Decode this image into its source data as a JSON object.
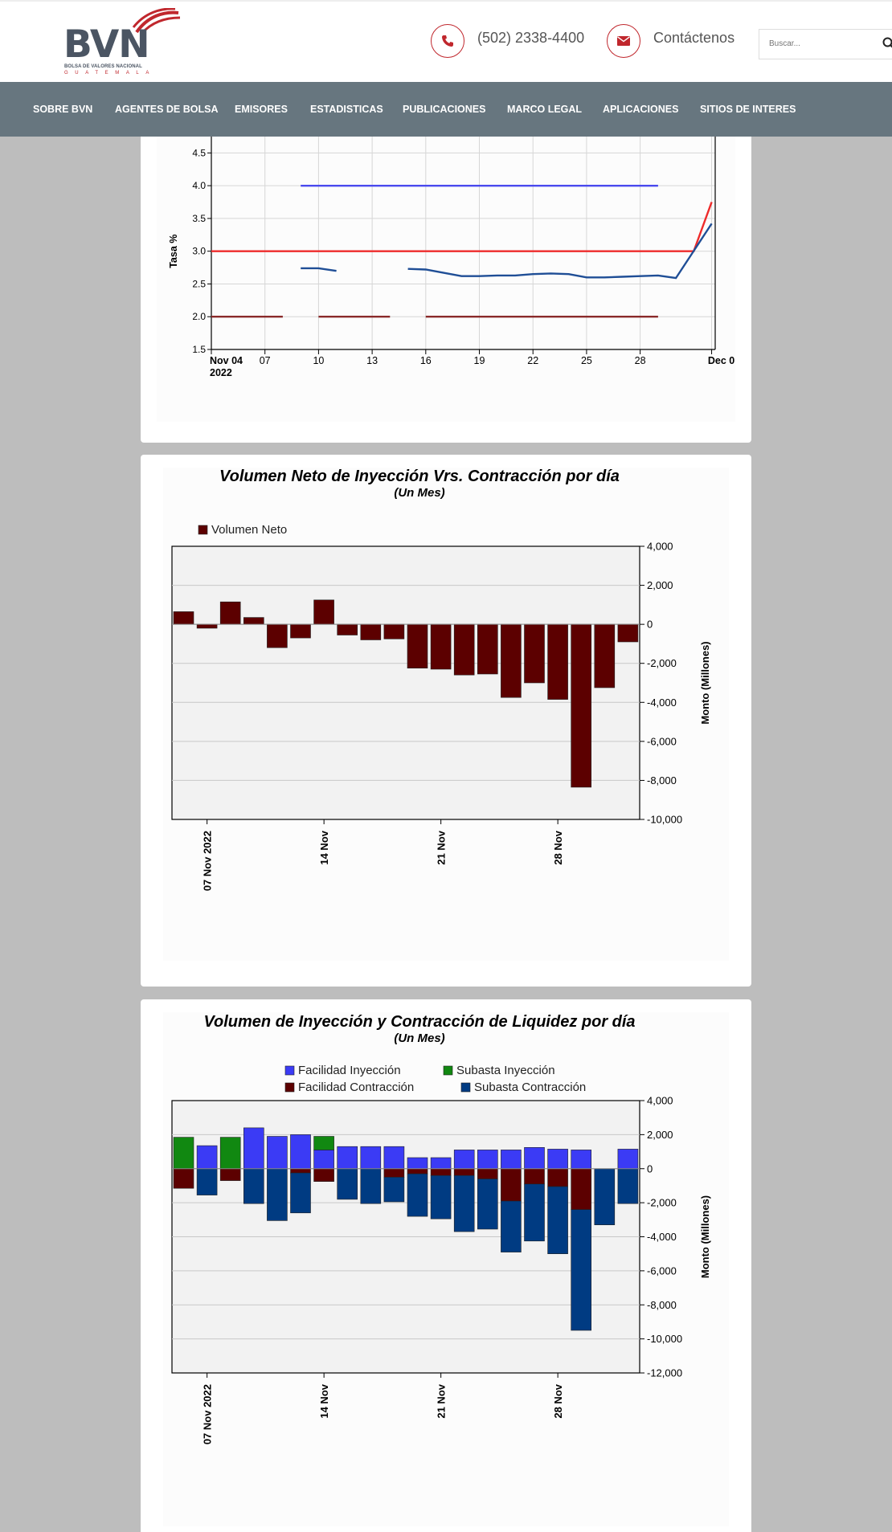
{
  "header": {
    "logo": {
      "name": "BVN",
      "line1": "BOLSA DE VALORES NACIONAL",
      "line2": "GUATEMALA"
    },
    "phone": {
      "icon": "phone-icon",
      "text": "(502) 2338-4400"
    },
    "contact": {
      "icon": "envelope-icon",
      "text": "Contáctenos"
    },
    "search": {
      "placeholder": "Buscar...",
      "icon": "search-icon"
    },
    "brand_color": "#c0272d"
  },
  "nav": {
    "items": [
      "SOBRE BVN",
      "AGENTES DE BOLSA",
      "EMISORES",
      "ESTADISTICAS",
      "PUBLICACIONES",
      "MARCO LEGAL",
      "APLICACIONES",
      "SITIOS DE INTERES"
    ],
    "color": "#67767f"
  },
  "chart_data": [
    {
      "type": "line",
      "title": "",
      "ylabel": "Tasa %",
      "xlabel": "",
      "ylim": [
        1.5,
        4.75
      ],
      "yticks": [
        "1.5",
        "2.0",
        "2.5",
        "3.0",
        "3.5",
        "4.0",
        "4.5"
      ],
      "xlim": [
        4,
        32.2
      ],
      "xticks": [
        {
          "x": 4,
          "label": "Nov 04",
          "sub": "2022"
        },
        {
          "x": 7,
          "label": "07"
        },
        {
          "x": 10,
          "label": "10"
        },
        {
          "x": 13,
          "label": "13"
        },
        {
          "x": 16,
          "label": "16"
        },
        {
          "x": 19,
          "label": "19"
        },
        {
          "x": 22,
          "label": "22"
        },
        {
          "x": 25,
          "label": "25"
        },
        {
          "x": 28,
          "label": "28"
        },
        {
          "x": 32,
          "label": "Dec 0"
        }
      ],
      "grid": true,
      "series": [
        {
          "color": "#4a4aee",
          "segments": [
            [
              [
                9,
                4.0
              ],
              [
                29,
                4.0
              ]
            ]
          ]
        },
        {
          "color": "#ee2b2b",
          "segments": [
            [
              [
                4,
                3.0
              ],
              [
                31,
                3.0
              ],
              [
                32,
                3.75
              ]
            ]
          ]
        },
        {
          "color": "#1f4e96",
          "segments": [
            [
              [
                9,
                2.74
              ],
              [
                10,
                2.74
              ],
              [
                11,
                2.7
              ]
            ],
            [
              [
                15,
                2.73
              ],
              [
                16,
                2.72
              ],
              [
                17,
                2.67
              ],
              [
                18,
                2.62
              ],
              [
                19,
                2.62
              ],
              [
                20,
                2.63
              ],
              [
                21,
                2.63
              ],
              [
                22,
                2.65
              ],
              [
                23,
                2.66
              ],
              [
                24,
                2.65
              ],
              [
                25,
                2.6
              ],
              [
                26,
                2.6
              ],
              [
                27,
                2.61
              ],
              [
                28,
                2.62
              ],
              [
                29,
                2.63
              ],
              [
                30,
                2.59
              ],
              [
                32,
                3.42
              ]
            ]
          ]
        },
        {
          "color": "#8a2a2a",
          "segments": [
            [
              [
                4,
                2.0
              ],
              [
                8,
                2.0
              ]
            ],
            [
              [
                10,
                2.0
              ],
              [
                14,
                2.0
              ]
            ],
            [
              [
                16,
                2.0
              ],
              [
                29,
                2.0
              ]
            ]
          ]
        }
      ]
    },
    {
      "type": "bar",
      "title": "Volumen Neto de Inyección Vrs. Contracción por día",
      "subtitle": "(Un Mes)",
      "ylabel": "Monto (Millones)",
      "xlabel": "",
      "ylim": [
        -10000,
        4000
      ],
      "yticks": [
        "4,000",
        "2,000",
        "0",
        "-2,000",
        "-4,000",
        "-6,000",
        "-8,000",
        "-10,000"
      ],
      "xticks": [
        {
          "index": 1.5,
          "label": "07 Nov 2022"
        },
        {
          "index": 6.5,
          "label": "14 Nov"
        },
        {
          "index": 11.5,
          "label": "21 Nov"
        },
        {
          "index": 16.5,
          "label": "28 Nov"
        }
      ],
      "legend_position": "top-left",
      "series": [
        {
          "name": "Volumen Neto",
          "color": "#5c0000",
          "values": [
            650,
            -200,
            1150,
            350,
            -1200,
            -700,
            1250,
            -550,
            -800,
            -750,
            -2250,
            -2300,
            -2600,
            -2550,
            -3750,
            -3000,
            -3850,
            -8350,
            -3250,
            -900
          ]
        }
      ]
    },
    {
      "type": "bar",
      "stacked": true,
      "title": "Volumen de Inyección y Contracción de Liquidez por día",
      "subtitle": "(Un Mes)",
      "ylabel": "Monto (Millones)",
      "xlabel": "",
      "ylim": [
        -12000,
        4000
      ],
      "yticks": [
        "4,000",
        "2,000",
        "0",
        "-2,000",
        "-4,000",
        "-6,000",
        "-8,000",
        "-10,000",
        "-12,000"
      ],
      "xticks": [
        {
          "index": 1.5,
          "label": "07 Nov 2022"
        },
        {
          "index": 6.5,
          "label": "14 Nov"
        },
        {
          "index": 11.5,
          "label": "21 Nov"
        },
        {
          "index": 16.5,
          "label": "28 Nov"
        }
      ],
      "legend_position": "top-center",
      "series": [
        {
          "name": "Facilidad Inyección",
          "color": "#3b3bf5",
          "values": [
            0,
            1350,
            0,
            2400,
            1900,
            2000,
            1100,
            1300,
            1300,
            1300,
            650,
            650,
            1100,
            1100,
            1100,
            1250,
            1150,
            1100,
            0,
            1150
          ]
        },
        {
          "name": "Subasta Inyección",
          "color": "#118811",
          "values": [
            1850,
            0,
            1850,
            0,
            0,
            0,
            800,
            0,
            0,
            0,
            0,
            0,
            0,
            0,
            0,
            0,
            0,
            0,
            0,
            0
          ]
        },
        {
          "name": "Facilidad Contracción",
          "color": "#5c0000",
          "values": [
            -1150,
            0,
            -700,
            0,
            0,
            -250,
            -750,
            0,
            0,
            -500,
            -300,
            -400,
            -400,
            -600,
            -1900,
            -900,
            -1050,
            -2400,
            0,
            0
          ]
        },
        {
          "name": "Subasta Contracción",
          "color": "#003b82",
          "values": [
            0,
            -1550,
            0,
            -2050,
            -3050,
            -2350,
            0,
            -1800,
            -2050,
            -1450,
            -2500,
            -2550,
            -3300,
            -2950,
            -3000,
            -3350,
            -3950,
            -7100,
            -3300,
            -2050
          ]
        }
      ]
    }
  ]
}
